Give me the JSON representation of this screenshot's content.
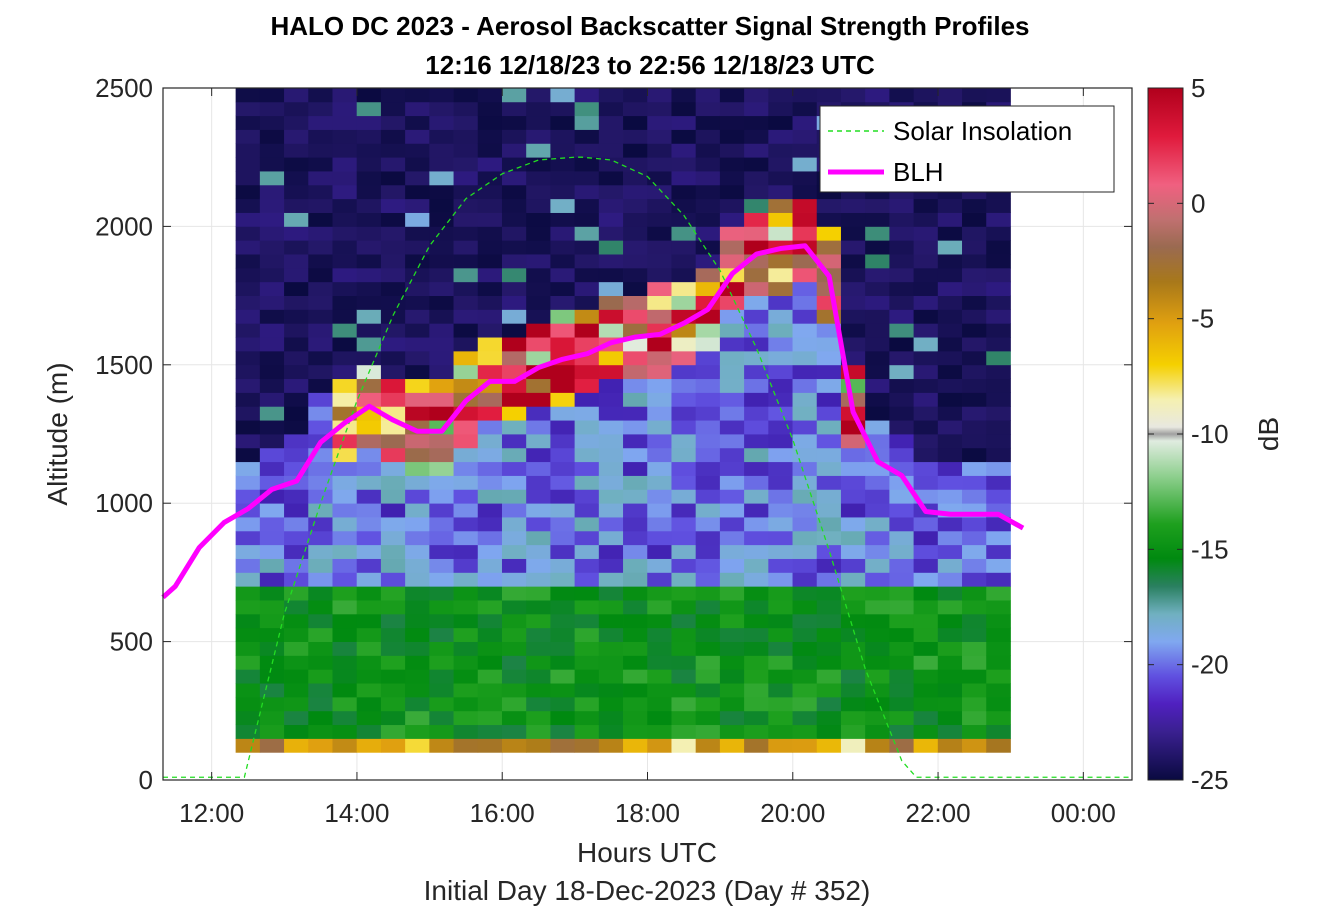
{
  "chart_data": {
    "type": "heatmap",
    "title": "HALO DC 2023 - Aerosol Backscatter Signal Strength Profiles",
    "subtitle": "12:16 12/18/23 to 22:56 12/18/23  UTC",
    "xlabel": "Hours UTC",
    "xlabel2": "Initial Day 18-Dec-2023 (Day # 352)",
    "ylabel": "Altitude (m)",
    "colorbar_label": "dB",
    "xlim": [
      11.33,
      24.67
    ],
    "ylim": [
      0,
      2500
    ],
    "x_ticks": [
      12,
      14,
      16,
      18,
      20,
      22,
      24
    ],
    "x_tick_labels": [
      "12:00",
      "14:00",
      "16:00",
      "18:00",
      "20:00",
      "22:00",
      "00:00"
    ],
    "y_ticks": [
      0,
      500,
      1000,
      1500,
      2000,
      2500
    ],
    "y_tick_labels": [
      "0",
      "500",
      "1000",
      "1500",
      "2000",
      "2500"
    ],
    "clim": [
      -25,
      5
    ],
    "colorbar_ticks": [
      5,
      0,
      -5,
      -10,
      -15,
      -20,
      -25
    ],
    "colorbar_tick_labels": [
      "5",
      "0",
      "-5",
      "-10",
      "-15",
      "-20",
      "-25"
    ],
    "grid": true,
    "legend_position": "top-right",
    "heatmap_extent": {
      "x_start": 12.33,
      "x_end": 22.95,
      "y_start": 100,
      "y_end": 2500
    },
    "series": [
      {
        "name": "Solar Insolation",
        "style": "dashed",
        "color": "#22dd22",
        "x": [
          11.33,
          12.45,
          13.0,
          13.5,
          14.0,
          14.5,
          15.0,
          15.5,
          16.0,
          16.5,
          17.0,
          17.1,
          17.5,
          18.0,
          18.5,
          19.0,
          19.5,
          20.0,
          20.5,
          21.0,
          21.5,
          21.7,
          24.67
        ],
        "y": [
          10,
          10,
          600,
          1000,
          1370,
          1680,
          1930,
          2100,
          2190,
          2240,
          2250,
          2250,
          2240,
          2180,
          2040,
          1840,
          1560,
          1230,
          830,
          400,
          70,
          10,
          10
        ]
      },
      {
        "name": "BLH",
        "style": "solid",
        "color": "#ff00ff",
        "x": [
          11.33,
          11.5,
          11.83,
          12.17,
          12.5,
          12.83,
          13.17,
          13.5,
          13.83,
          14.17,
          14.5,
          14.83,
          15.17,
          15.5,
          15.83,
          16.17,
          16.5,
          16.83,
          17.17,
          17.5,
          17.83,
          18.17,
          18.5,
          18.83,
          19.17,
          19.5,
          19.83,
          20.17,
          20.5,
          20.83,
          21.17,
          21.5,
          21.83,
          22.17,
          22.5,
          22.83,
          23.17
        ],
        "y": [
          660,
          700,
          840,
          930,
          980,
          1050,
          1080,
          1220,
          1290,
          1350,
          1300,
          1260,
          1260,
          1370,
          1440,
          1440,
          1490,
          1520,
          1540,
          1580,
          1600,
          1610,
          1650,
          1700,
          1830,
          1900,
          1920,
          1930,
          1820,
          1330,
          1150,
          1100,
          970,
          960,
          960,
          960,
          910
        ]
      }
    ],
    "heatmap_description": "Backscatter in dB on a blue-green-yellow-red colormap: strong green near-surface layer below ~700 m with yellow/orange lowest bin, strong red/orange/yellow band tracking just above the BLH curve, dark navy/purple aloft."
  },
  "legend": {
    "solar_label": "Solar Insolation",
    "blh_label": "BLH"
  },
  "colors": {
    "frame": "#262626",
    "grid": "#e6e6e6",
    "blh": "#ff00ff",
    "solar": "#22dd22"
  }
}
